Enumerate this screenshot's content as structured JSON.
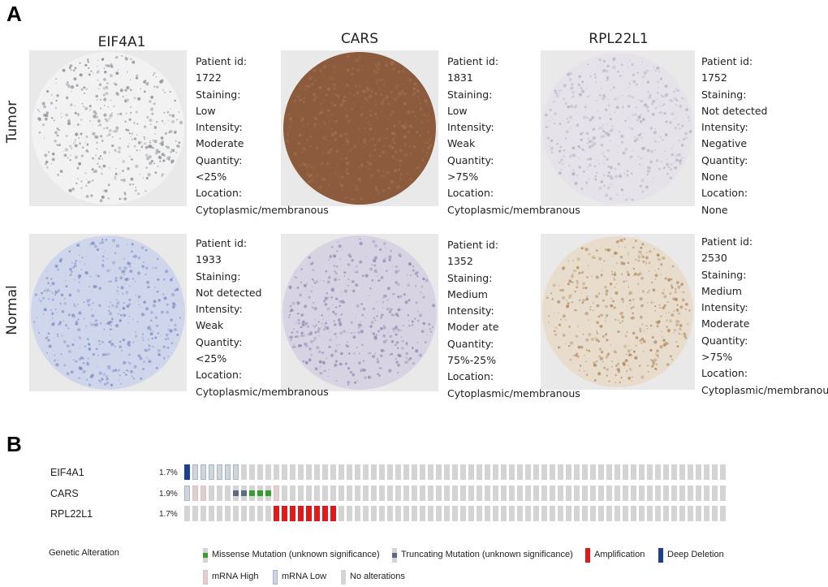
{
  "panel_a": {
    "label": "A",
    "genes": [
      "EIF4A1",
      "CARS",
      "RPL22L1"
    ],
    "rows": [
      "Tumor",
      "Normal"
    ],
    "samples": [
      {
        "gene": "EIF4A1",
        "tissue": "Tumor",
        "stain": "#8a8f96",
        "bg": "#f2f2f2",
        "lines": [
          "Patient id:",
          "1722",
          "Staining:",
          "Low",
          "Intensity:",
          "Moderate",
          "Quantity:",
          "<25%",
          "Location:",
          "Cytoplasmic/membranous"
        ]
      },
      {
        "gene": "CARS",
        "tissue": "Tumor",
        "stain": "#a0704f",
        "bg": "#8c5a3c",
        "lines": [
          "Patient id:",
          "1831",
          "Staining:",
          "Low",
          "Intensity:",
          "Weak",
          "Quantity:",
          ">75%",
          "Location:",
          "Cytoplasmic/membranous"
        ]
      },
      {
        "gene": "RPL22L1",
        "tissue": "Tumor",
        "stain": "#b9b2c4",
        "bg": "#e6e2ea",
        "lines": [
          "Patient id:",
          "1752",
          "Staining:",
          "Not detected",
          "Intensity:",
          "Negative",
          "Quantity:",
          "None",
          "Location:",
          "None"
        ]
      },
      {
        "gene": "EIF4A1",
        "tissue": "Normal",
        "stain": "#7f8dc3",
        "bg": "#cfd6ec",
        "lines": [
          "Patient id:",
          "1933",
          "Staining:",
          "Not detected",
          "Intensity:",
          "Weak",
          "Quantity:",
          "<25%",
          "Location:",
          "Cytoplasmic/membranous"
        ]
      },
      {
        "gene": "CARS",
        "tissue": "Normal",
        "stain": "#8f8cb3",
        "bg": "#d7d3e3",
        "lines": [
          "Patient id:",
          "1352",
          "Staining:",
          "Medium",
          "Intensity:",
          "Moder ate",
          "Quantity:",
          "75%-25%",
          "Location:",
          "Cytoplasmic/membranous"
        ]
      },
      {
        "gene": "RPL22L1",
        "tissue": "Normal",
        "stain": "#b08a5c",
        "bg": "#e8dccd",
        "lines": [
          "Patient id:",
          "2530",
          "Staining:",
          "Medium",
          "Intensity:",
          "Moderate",
          "Quantity:",
          ">75%",
          "Location:",
          "Cytoplasmic/membranous"
        ]
      }
    ]
  },
  "panel_b": {
    "label": "B",
    "sample_count": 67,
    "genes": [
      {
        "name": "EIF4A1",
        "pct": "1.7%",
        "alterations": [
          {
            "index": 0,
            "type": "deep_deletion"
          },
          {
            "index": 1,
            "type": "mrna_low"
          },
          {
            "index": 2,
            "type": "mrna_low"
          },
          {
            "index": 3,
            "type": "mrna_low"
          },
          {
            "index": 4,
            "type": "mrna_low"
          },
          {
            "index": 5,
            "type": "mrna_low"
          },
          {
            "index": 6,
            "type": "mrna_low"
          }
        ]
      },
      {
        "name": "CARS",
        "pct": "1.9%",
        "alterations": [
          {
            "index": 0,
            "type": "mrna_low"
          },
          {
            "index": 1,
            "type": "mrna_high"
          },
          {
            "index": 2,
            "type": "mrna_high"
          },
          {
            "index": 6,
            "type": "truncating"
          },
          {
            "index": 7,
            "type": "truncating"
          },
          {
            "index": 8,
            "type": "missense"
          },
          {
            "index": 9,
            "type": "missense"
          },
          {
            "index": 10,
            "type": "missense"
          },
          {
            "index": 11,
            "type": "mrna_high"
          }
        ]
      },
      {
        "name": "RPL22L1",
        "pct": "1.7%",
        "alterations": [
          {
            "index": 11,
            "type": "amplification"
          },
          {
            "index": 12,
            "type": "amplification"
          },
          {
            "index": 13,
            "type": "amplification"
          },
          {
            "index": 14,
            "type": "amplification"
          },
          {
            "index": 15,
            "type": "amplification"
          },
          {
            "index": 16,
            "type": "amplification"
          },
          {
            "index": 17,
            "type": "amplification"
          },
          {
            "index": 18,
            "type": "amplification"
          }
        ]
      }
    ],
    "colors": {
      "no_alteration": "#d4d4d4",
      "missense": "#36a02e",
      "truncating": "#5d6b80",
      "amplification": "#e0191b",
      "deep_deletion": "#1d3f8f",
      "mrna_high": "#f0b8b8",
      "mrna_low": "#9fb8d8"
    },
    "legend": {
      "title": "Genetic Alteration",
      "missense": "Missense Mutation (unknown significance)",
      "truncating": "Truncating Mutation (unknown significance)",
      "amplification": "Amplification",
      "deep_deletion": "Deep Deletion",
      "mrna_high": "mRNA High",
      "mrna_low": "mRNA Low",
      "no_alteration": "No alterations"
    }
  }
}
